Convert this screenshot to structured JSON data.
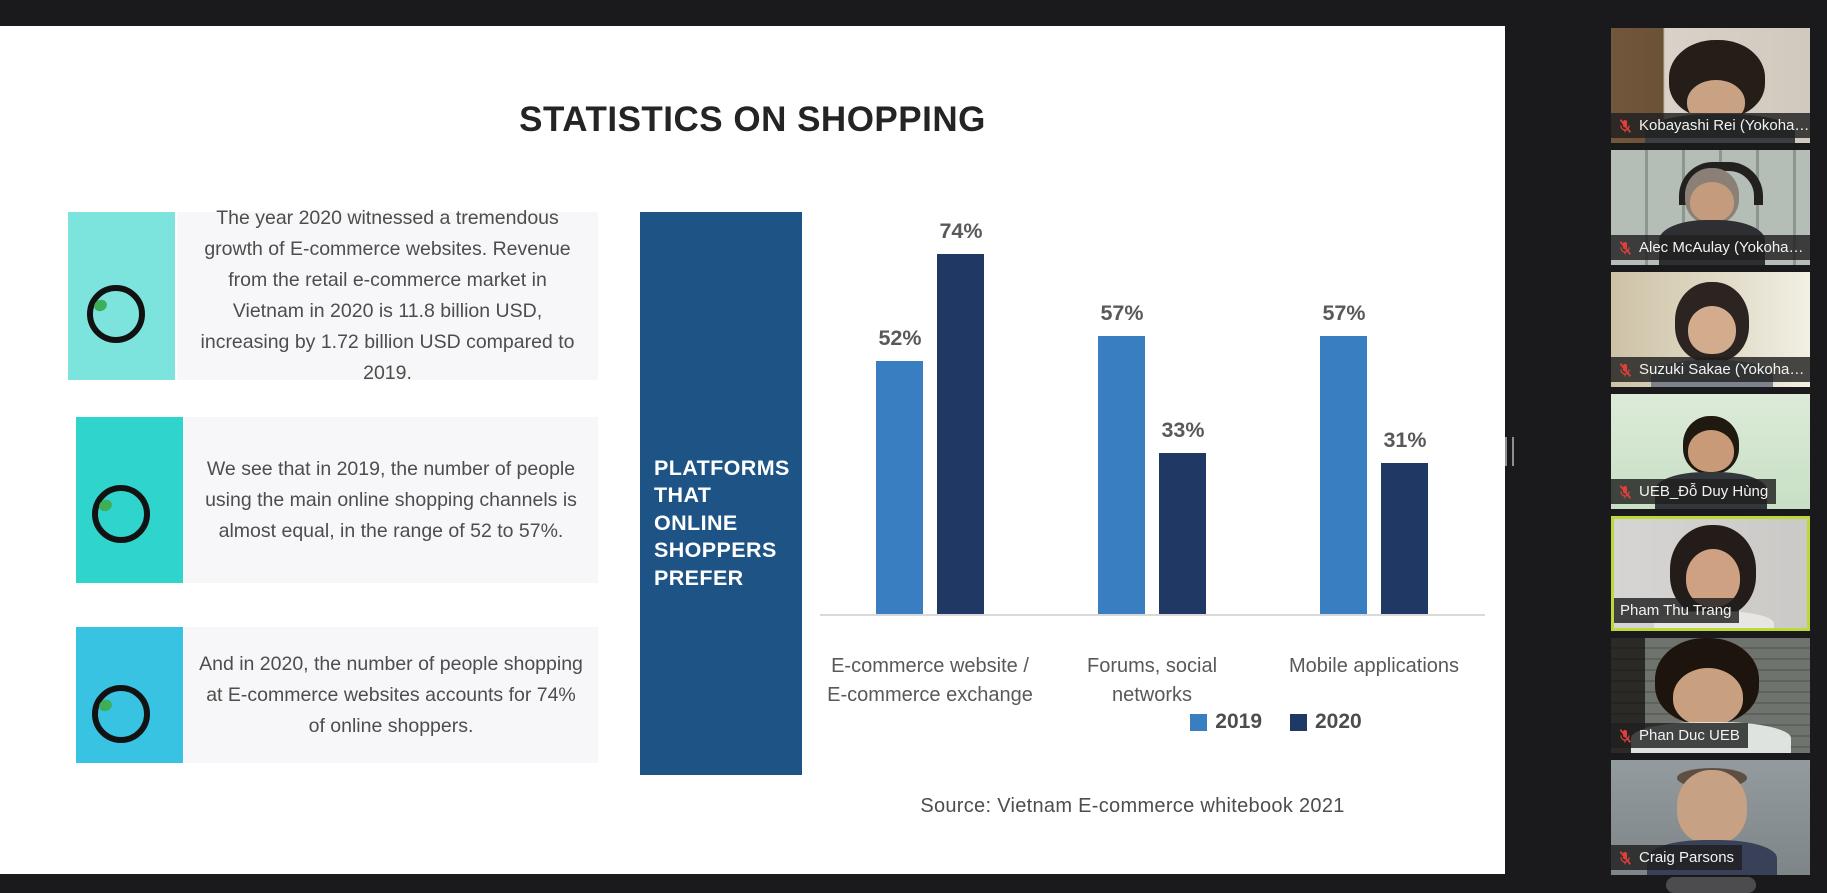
{
  "slide": {
    "title": "STATISTICS ON SHOPPING",
    "insights": [
      {
        "text": "The year 2020 witnessed a tremendous growth of E-commerce websites. Revenue from the retail e-commerce market in Vietnam in 2020 is 11.8 billion USD, increasing by 1.72 billion USD compared to 2019.",
        "accent": "#7CE4DD"
      },
      {
        "text": "We see that in 2019, the number of people using the main online shopping channels is almost equal, in the range of 52 to 57%.",
        "accent": "#2FD4CD"
      },
      {
        "text": "And in 2020, the number of people shopping at E-commerce websites accounts for 74% of online shoppers.",
        "accent": "#39C3E2"
      }
    ],
    "platforms_lines": [
      "PLATFORMS",
      "THAT",
      "ONLINE",
      "SHOPPERS",
      "PREFER"
    ],
    "platforms_box_color": "#1d5385"
  },
  "chart_data": {
    "type": "bar",
    "title": "PLATFORMS THAT ONLINE SHOPPERS PREFER",
    "categories": [
      "E-commerce website / E-commerce exchange",
      "Forums, social networks",
      "Mobile applications"
    ],
    "category_lines": [
      [
        "E-commerce website /",
        "E-commerce exchange"
      ],
      [
        "Forums, social",
        "networks"
      ],
      [
        "Mobile applications",
        ""
      ]
    ],
    "series": [
      {
        "name": "2019",
        "color": "#3A7EC2",
        "values": [
          52,
          57,
          57
        ]
      },
      {
        "name": "2020",
        "color": "#1F3864",
        "values": [
          74,
          33,
          31
        ]
      }
    ],
    "unit": "%",
    "ylim": [
      0,
      80
    ],
    "gridlines": false,
    "legend_position": "bottom",
    "source": "Source: Vietnam E-commerce whitebook 2021"
  },
  "participants": [
    {
      "name": "Kobayashi Rei (Yokoha…",
      "muted": true,
      "active": false
    },
    {
      "name": "Alec McAulay (Yokoha…",
      "muted": true,
      "active": false
    },
    {
      "name": "Suzuki Sakae (Yokoha…",
      "muted": true,
      "active": false
    },
    {
      "name": "UEB_Đỗ Duy Hùng",
      "muted": true,
      "active": false
    },
    {
      "name": "Pham Thu Trang",
      "muted": false,
      "active": true
    },
    {
      "name": "Phan Duc UEB",
      "muted": true,
      "active": false
    },
    {
      "name": "Craig Parsons",
      "muted": true,
      "active": false
    }
  ]
}
